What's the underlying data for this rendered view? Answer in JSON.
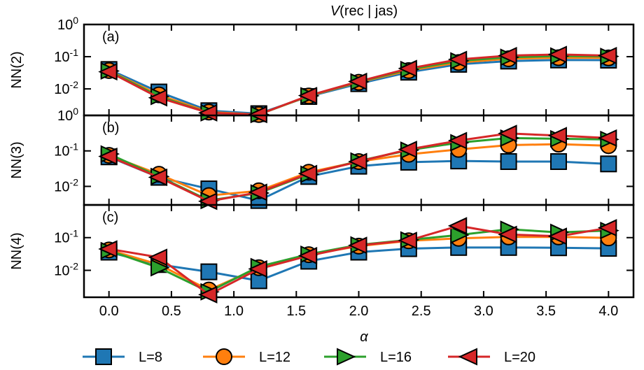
{
  "chart_data": {
    "type": "line",
    "title": "V(rec | jas)",
    "title_italic_part": "V",
    "title_rest": "(rec | jas)",
    "xlabel": "α",
    "x": [
      0.0,
      0.4,
      0.8,
      1.2,
      1.6,
      2.0,
      2.4,
      2.8,
      3.2,
      3.6,
      4.0
    ],
    "xlim": [
      -0.2,
      4.2
    ],
    "xticks": [
      0.0,
      0.5,
      1.0,
      1.5,
      2.0,
      2.5,
      3.0,
      3.5,
      4.0
    ],
    "xtick_labels": [
      "0.0",
      "0.5",
      "1.0",
      "1.5",
      "2.0",
      "2.5",
      "3.0",
      "3.5",
      "4.0"
    ],
    "yscale": "log",
    "grid": false,
    "legend_position": "bottom",
    "series_styles": [
      {
        "name": "L=8",
        "color": "#1f77b4",
        "marker": "square"
      },
      {
        "name": "L=12",
        "color": "#ff7f0e",
        "marker": "circle"
      },
      {
        "name": "L=16",
        "color": "#2ca02c",
        "marker": "triangle-right"
      },
      {
        "name": "L=20",
        "color": "#d62728",
        "marker": "triangle-left"
      }
    ],
    "panels": [
      {
        "panel_label": "(a)",
        "ylabel": "NN(2)",
        "ylim": [
          0.0015,
          1.0
        ],
        "ytick_labels": [
          "10^0",
          "10^-1",
          "10^-2",
          "10^0"
        ],
        "series": [
          {
            "name": "L=8",
            "values": [
              0.04,
              0.008,
              0.0021,
              0.0017,
              0.0058,
              0.0145,
              0.033,
              0.058,
              0.073,
              0.079,
              0.078
            ]
          },
          {
            "name": "L=12",
            "values": [
              0.037,
              0.0065,
              0.0019,
              0.0016,
              0.006,
              0.016,
              0.037,
              0.066,
              0.086,
              0.093,
              0.092
            ]
          },
          {
            "name": "L=16",
            "values": [
              0.036,
              0.0058,
              0.0018,
              0.0016,
              0.0061,
              0.0165,
              0.04,
              0.074,
              0.096,
              0.105,
              0.102
            ]
          },
          {
            "name": "L=20",
            "values": [
              0.034,
              0.0053,
              0.0018,
              0.0016,
              0.0062,
              0.017,
              0.043,
              0.082,
              0.108,
              0.117,
              0.108
            ]
          }
        ]
      },
      {
        "panel_label": "(b)",
        "ylabel": "NN(3)",
        "ylim": [
          0.003,
          1.0
        ],
        "ytick_labels": [
          "10^-1",
          "10^-2"
        ],
        "series": [
          {
            "name": "L=8",
            "values": [
              0.068,
              0.018,
              0.0085,
              0.004,
              0.019,
              0.037,
              0.048,
              0.052,
              0.05,
              0.05,
              0.043
            ]
          },
          {
            "name": "L=12",
            "values": [
              0.075,
              0.022,
              0.0055,
              0.0075,
              0.025,
              0.05,
              0.08,
              0.11,
              0.145,
              0.155,
              0.14
            ]
          },
          {
            "name": "L=16",
            "values": [
              0.082,
              0.019,
              0.004,
              0.0065,
              0.022,
              0.052,
              0.105,
              0.17,
              0.23,
              0.22,
              0.21
            ]
          },
          {
            "name": "L=20",
            "values": [
              0.07,
              0.018,
              0.0038,
              0.0068,
              0.023,
              0.05,
              0.11,
              0.195,
              0.31,
              0.27,
              0.23
            ]
          }
        ]
      },
      {
        "panel_label": "(c)",
        "ylabel": "NN(4)",
        "ylim": [
          0.0015,
          1.0
        ],
        "ytick_labels": [
          "10^-1",
          "10^-2"
        ],
        "series": [
          {
            "name": "L=8",
            "values": [
              0.036,
              0.015,
              0.009,
              0.0048,
              0.019,
              0.036,
              0.046,
              0.05,
              0.05,
              0.049,
              0.047
            ]
          },
          {
            "name": "L=12",
            "values": [
              0.042,
              0.015,
              0.0025,
              0.012,
              0.03,
              0.055,
              0.08,
              0.095,
              0.105,
              0.105,
              0.098
            ]
          },
          {
            "name": "L=16",
            "values": [
              0.04,
              0.012,
              0.0022,
              0.013,
              0.031,
              0.06,
              0.085,
              0.12,
              0.18,
              0.145,
              0.165
            ]
          },
          {
            "name": "L=20",
            "values": [
              0.045,
              0.025,
              0.0018,
              0.011,
              0.028,
              0.058,
              0.082,
              0.23,
              0.125,
              0.11,
              0.2
            ]
          }
        ]
      }
    ]
  }
}
